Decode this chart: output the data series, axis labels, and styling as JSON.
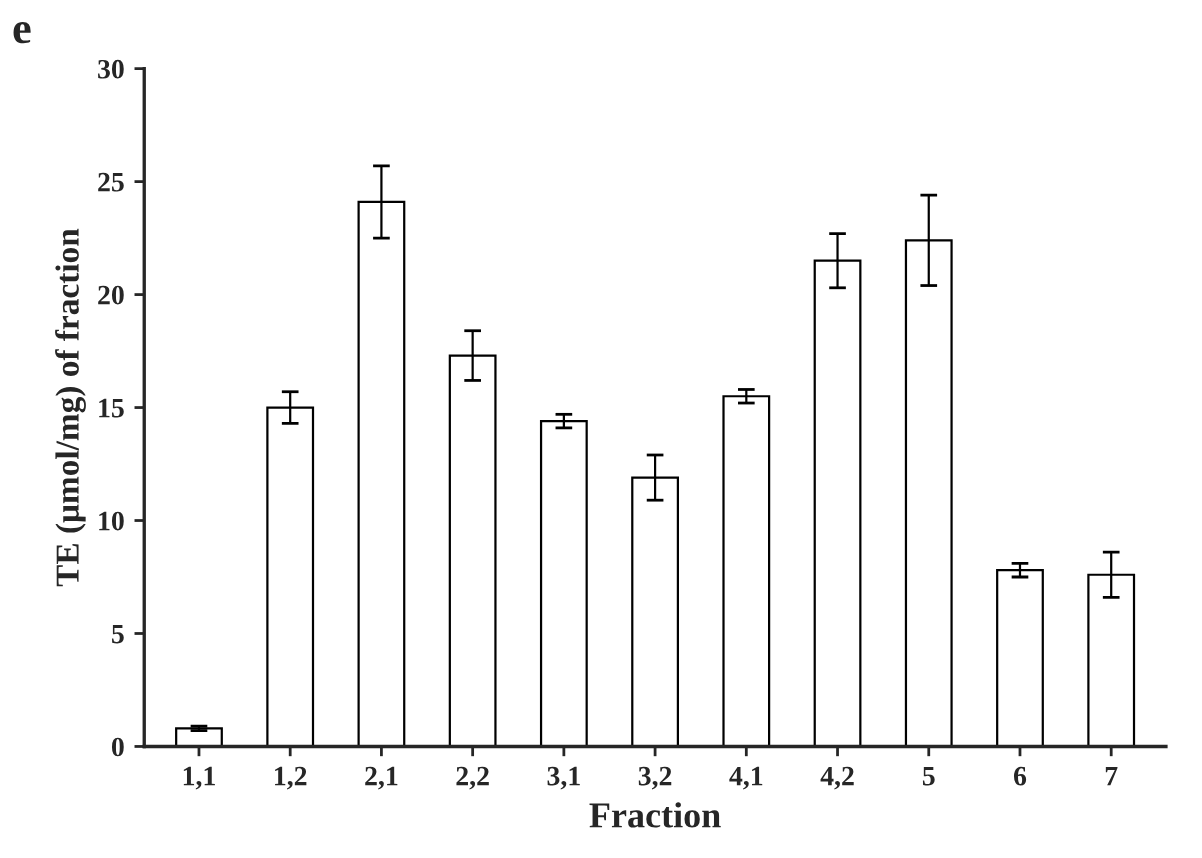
{
  "chart_data": {
    "type": "bar",
    "xlabel": "Fraction",
    "ylabel": "TE (μmol/mg) of fraction",
    "annotations": [
      "e"
    ],
    "categories": [
      "1,1",
      "1,2",
      "2,1",
      "2,2",
      "3,1",
      "3,2",
      "4,1",
      "4,2",
      "5",
      "6",
      "7"
    ],
    "values": [
      0.8,
      15.0,
      24.1,
      17.3,
      14.4,
      11.9,
      15.5,
      21.5,
      22.4,
      7.8,
      7.6
    ],
    "errors": [
      0.1,
      0.7,
      1.6,
      1.1,
      0.3,
      1.0,
      0.3,
      1.2,
      2.0,
      0.3,
      1.0
    ],
    "color": "#ffffff",
    "ylim": [
      0,
      30
    ],
    "yticks": [
      0,
      5,
      10,
      15,
      20,
      25,
      30
    ],
    "grid": false,
    "legend": false
  }
}
